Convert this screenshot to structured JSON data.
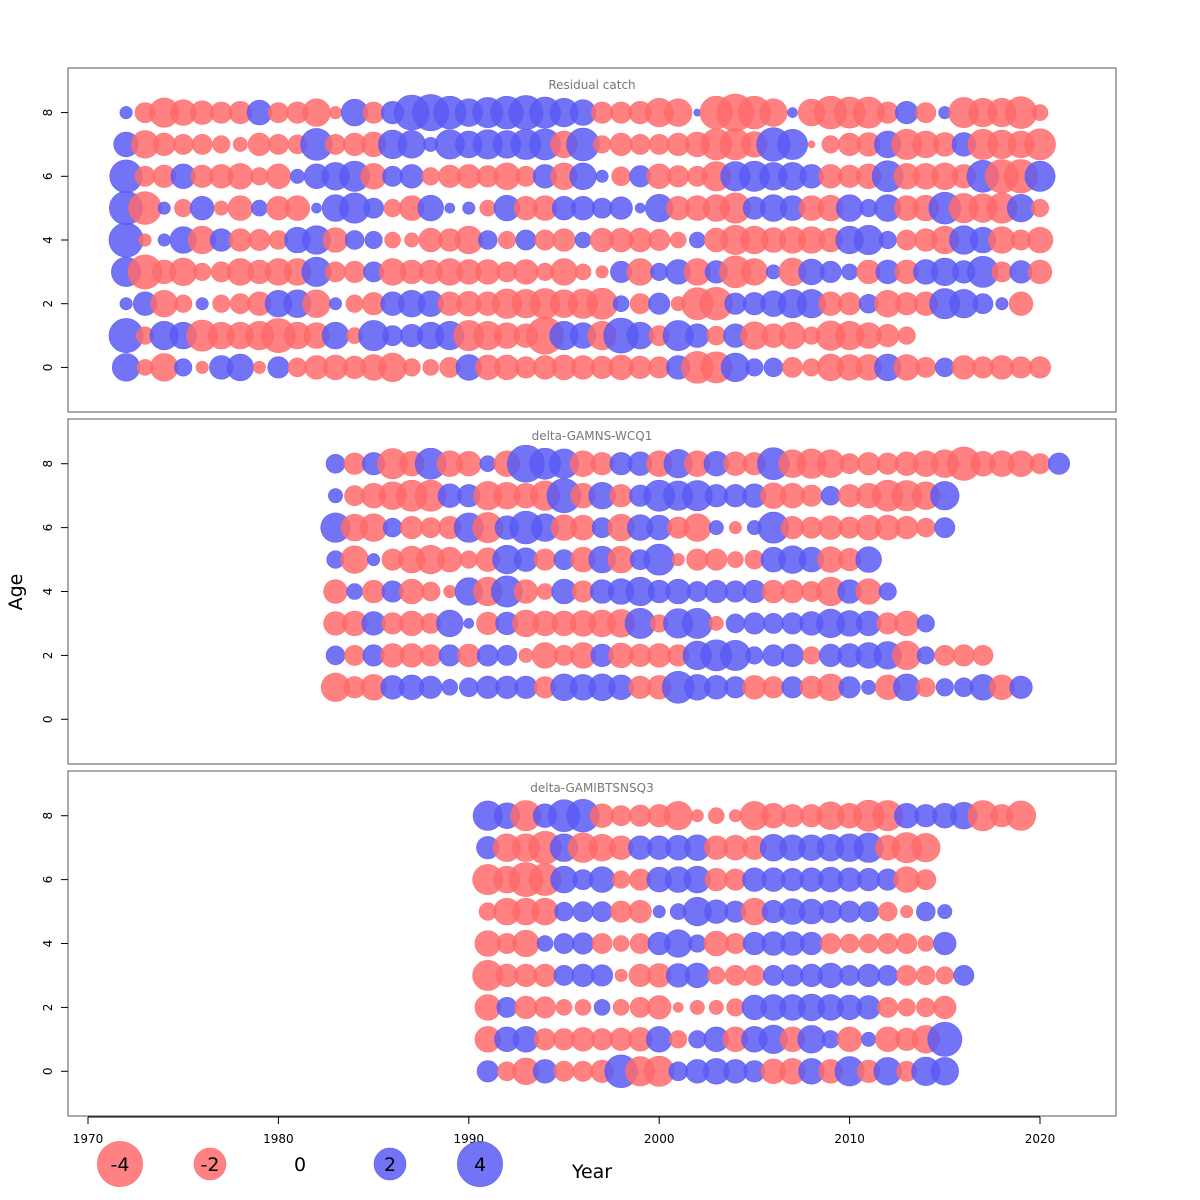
{
  "chart_data": {
    "type": "bubble",
    "xlabel": "Year",
    "ylabel": "Age",
    "x_ticks": [
      1970,
      1980,
      1990,
      2000,
      2010,
      2020
    ],
    "xlim": [
      1969,
      2024
    ],
    "colors": {
      "positive": "#5a5af5",
      "negative": "#ff6b6b"
    },
    "legend": {
      "items": [
        {
          "label": "-4",
          "value": -4
        },
        {
          "label": "-2",
          "value": -2
        },
        {
          "label": "0",
          "value": 0
        },
        {
          "label": "2",
          "value": 2
        },
        {
          "label": "4",
          "value": 4
        }
      ]
    },
    "panels": [
      {
        "title": "Residual catch",
        "y_ticks": [
          "0",
          "2",
          "4",
          "6",
          "8"
        ],
        "ylim": [
          -1.4,
          9.4
        ],
        "years": [
          1972,
          2020
        ],
        "ages": [
          0,
          8
        ],
        "residuals": {
          "8": [
            0.3,
            -0.8,
            -1.7,
            -1.3,
            -1.1,
            -0.9,
            -1.0,
            1.2,
            -0.8,
            -0.9,
            -1.5,
            -0.3,
            1.4,
            -0.9,
            1.0,
            2.4,
            2.6,
            2.1,
            1.5,
            1.8,
            2.1,
            2.3,
            1.9,
            1.6,
            1.3,
            -0.9,
            -0.9,
            -1.0,
            -1.6,
            -1.5,
            0.1,
            -2.1,
            -2.7,
            -2.1,
            -1.5,
            0.2,
            -1.4,
            -2.1,
            -1.9,
            -1.9,
            -0.9,
            1.0,
            -0.8,
            0.3,
            -1.8,
            -1.6,
            -1.6,
            -2.0,
            -0.5
          ],
          "7": [
            1.2,
            -1.5,
            -1.0,
            -0.8,
            -0.8,
            -0.6,
            -0.4,
            -1.0,
            -0.8,
            -0.7,
            2.0,
            -0.8,
            -1.0,
            -1.2,
            1.6,
            1.5,
            0.4,
            1.7,
            1.4,
            1.7,
            1.5,
            1.8,
            1.9,
            -1.4,
            2.1,
            -0.6,
            -1.0,
            -0.8,
            -0.8,
            -1.0,
            -1.2,
            -1.9,
            -1.9,
            -1.3,
            2.2,
            1.8,
            -0.1,
            -0.6,
            -1.0,
            -1.1,
            1.4,
            -1.8,
            -1.4,
            -1.1,
            1.1,
            -1.8,
            -1.6,
            -1.4,
            -1.9
          ],
          "6": [
            2.1,
            -0.8,
            -1.0,
            1.2,
            -1.0,
            -1.1,
            -1.3,
            -0.6,
            -1.2,
            0.4,
            1.2,
            1.5,
            1.8,
            -1.3,
            0.8,
            1.1,
            -0.6,
            -1.0,
            -1.1,
            -0.9,
            -1.4,
            -0.8,
            1.1,
            -1.4,
            1.4,
            0.3,
            -0.7,
            0.9,
            -1.2,
            -0.9,
            -0.8,
            -1.7,
            1.7,
            1.8,
            1.5,
            1.5,
            1.1,
            -1.1,
            -1.0,
            -1.2,
            1.9,
            -1.3,
            -1.3,
            -1.4,
            -1.1,
            2.0,
            -2.2,
            -2.2,
            1.8
          ],
          "5": [
            2.2,
            -2.1,
            0.3,
            -0.6,
            1.1,
            -0.4,
            -1.2,
            0.5,
            -1.1,
            -1.2,
            0.2,
            1.4,
            1.8,
            0.8,
            -0.6,
            -1.2,
            1.3,
            0.2,
            0.3,
            -0.5,
            1.3,
            -1.1,
            -1.2,
            1.1,
            1.1,
            0.8,
            1.0,
            0.2,
            1.5,
            -1.1,
            -1.2,
            -1.4,
            -1.8,
            1.0,
            1.4,
            1.2,
            -1.2,
            -1.3,
            1.4,
            0.6,
            1.4,
            -1.2,
            -1.3,
            2.0,
            -1.7,
            -1.6,
            -1.8,
            1.5,
            -0.6
          ],
          "4": [
            2.3,
            -0.3,
            0.3,
            1.4,
            -1.5,
            1.0,
            -1.0,
            -0.9,
            -0.7,
            1.3,
            1.6,
            -1.2,
            0.7,
            0.6,
            -0.5,
            -0.4,
            -1.1,
            -1.0,
            -1.5,
            0.7,
            -0.6,
            0.8,
            -0.8,
            -1.0,
            0.5,
            -1.1,
            -1.1,
            -1.1,
            -0.9,
            -0.5,
            0.5,
            -1.1,
            -1.7,
            -1.5,
            -1.2,
            -1.4,
            -1.4,
            -1.1,
            1.5,
            1.7,
            0.6,
            -0.8,
            -1.0,
            -1.5,
            1.6,
            1.3,
            -1.4,
            -0.8,
            -1.3,
            -1.2,
            -1.4,
            0.8
          ],
          "3": [
            1.7,
            -2.3,
            -1.1,
            -1.5,
            -0.6,
            -0.8,
            -1.4,
            -1.1,
            -1.4,
            -1.4,
            1.7,
            -0.8,
            -0.9,
            0.8,
            -1.4,
            -1.1,
            -1.1,
            -1.4,
            -1.2,
            -1.2,
            -0.8,
            -1.2,
            -0.6,
            -1.4,
            -0.5,
            -0.3,
            0.9,
            -1.4,
            0.6,
            1.2,
            -1.4,
            1.0,
            -2.0,
            -1.4,
            0.4,
            -1.5,
            1.3,
            0.9,
            0.5,
            -1.1,
            1.1,
            -1.1,
            1.2,
            1.5,
            1.0,
            1.9,
            -0.8,
            1.0,
            -1.1,
            0.8,
            -1.1,
            -1.1,
            0.7
          ],
          "2": [
            0.3,
            1.1,
            -1.4,
            -0.6,
            0.3,
            -0.6,
            -0.8,
            -1.1,
            1.4,
            1.5,
            -1.5,
            0.3,
            -0.6,
            -1.0,
            1.1,
            1.4,
            1.3,
            -1.1,
            -1.2,
            -1.1,
            -1.7,
            -1.6,
            -1.8,
            -1.5,
            -1.7,
            -1.9,
            0.5,
            -0.8,
            0.9,
            -0.4,
            -2.0,
            -2.1,
            0.9,
            1.0,
            1.3,
            1.6,
            1.6,
            -1.1,
            -1.0,
            0.7,
            -1.4,
            -1.0,
            -1.1,
            1.8,
            1.6,
            0.8,
            0.3,
            -1.1
          ],
          "1": [
            2.3,
            -0.6,
            1.6,
            1.4,
            -1.9,
            -1.4,
            -1.4,
            -1.6,
            -2.3,
            -1.4,
            -1.3,
            1.4,
            -0.5,
            1.8,
            0.8,
            1.0,
            1.4,
            1.6,
            -1.8,
            -1.6,
            -1.3,
            -1.1,
            -2.7,
            1.6,
            1.3,
            -1.6,
            2.4,
            1.4,
            -0.8,
            1.8,
            1.1,
            -0.7,
            1.1,
            -1.5,
            -1.1,
            -1.4,
            -0.6,
            -1.7,
            -1.6,
            -1.3,
            -1.0,
            -0.6
          ],
          "0": [
            1.5,
            -0.5,
            -1.5,
            0.6,
            -0.3,
            1.1,
            1.4,
            -0.3,
            0.9,
            -0.7,
            -1.1,
            -1.2,
            -1.0,
            -1.3,
            -1.6,
            -0.6,
            -0.5,
            -0.8,
            1.3,
            -1.2,
            -1.2,
            -0.9,
            -1.1,
            -1.2,
            -1.1,
            -1.0,
            -1.2,
            -1.0,
            -0.9,
            1.1,
            -2.0,
            -1.9,
            1.6,
            0.6,
            0.7,
            -0.8,
            -0.6,
            -1.4,
            -1.3,
            -1.3,
            1.4,
            -1.3,
            -0.8,
            0.7,
            -1.1,
            -0.9,
            -1.1,
            -0.9,
            -0.9,
            0.8,
            -1.3,
            -0.8,
            -1.6
          ]
        }
      },
      {
        "title": "delta-GAMNS-WCQ1",
        "y_ticks": [
          "0",
          "2",
          "4",
          "6",
          "8"
        ],
        "ylim": [
          -1.4,
          9.4
        ],
        "years": [
          1983,
          2021
        ],
        "ages": [
          1,
          8
        ],
        "residuals": {
          "8": [
            0.7,
            -0.9,
            1.0,
            -1.8,
            -1.2,
            1.9,
            -1.3,
            -1.2,
            0.5,
            -1.3,
            2.7,
            1.9,
            1.7,
            -1.3,
            -1.0,
            1.0,
            1.1,
            -1.3,
            1.6,
            -1.3,
            1.2,
            -1.1,
            -1.0,
            2.0,
            -1.5,
            -1.7,
            -1.5,
            -0.8,
            -1.0,
            -0.9,
            -1.1,
            -1.3,
            -1.5,
            -2.2,
            -1.2,
            -1.3,
            -1.3,
            -0.8,
            0.9
          ],
          "7": [
            0.4,
            -0.8,
            -1.2,
            -1.5,
            -1.9,
            -1.9,
            1.1,
            1.0,
            -1.6,
            -1.4,
            -1.2,
            -1.7,
            2.3,
            -1.2,
            1.4,
            -1.0,
            0.9,
            1.9,
            1.7,
            1.8,
            1.0,
            1.0,
            1.1,
            -1.3,
            -1.2,
            -0.9,
            0.7,
            -1.0,
            -1.2,
            -1.9,
            -1.8,
            -1.5,
            1.6
          ],
          "6": [
            1.7,
            -1.4,
            -1.5,
            0.7,
            -1.0,
            -0.8,
            -1.0,
            1.7,
            -1.8,
            1.1,
            2.1,
            1.5,
            -1.3,
            -1.2,
            0.8,
            -1.4,
            1.3,
            1.2,
            -0.9,
            -1.5,
            0.4,
            -0.3,
            0.4,
            1.9,
            -1.0,
            -0.9,
            -1.1,
            -0.9,
            -1.2,
            -1.2,
            -1.0,
            -0.7,
            0.8
          ],
          "5": [
            0.6,
            -1.5,
            0.3,
            -0.9,
            -1.4,
            -1.6,
            -1.2,
            -0.6,
            -1.1,
            1.6,
            1.1,
            -0.9,
            0.8,
            -1.2,
            1.4,
            -1.4,
            0.8,
            1.9,
            -0.3,
            -0.9,
            -0.9,
            -0.5,
            -0.7,
            1.2,
            1.5,
            1.2,
            -1.3,
            -1.0,
            1.3
          ],
          "4": [
            -1.1,
            0.5,
            -1.0,
            0.9,
            -1.2,
            -0.7,
            -0.3,
            1.5,
            -1.6,
            1.9,
            -1.1,
            -0.5,
            1.2,
            -0.9,
            1.1,
            1.3,
            1.6,
            1.0,
            1.2,
            0.8,
            1.0,
            0.9,
            1.0,
            -1.0,
            -1.0,
            -0.8,
            -1.6,
            1.1,
            -1.3,
            0.6
          ],
          "3": [
            -1.1,
            -1.2,
            1.1,
            -0.9,
            -1.2,
            -0.8,
            1.4,
            0.2,
            -1.0,
            1.0,
            -1.4,
            -1.2,
            -1.2,
            -1.3,
            -1.4,
            -1.5,
            1.8,
            -0.6,
            1.7,
            1.8,
            -0.4,
            0.7,
            0.9,
            0.8,
            0.9,
            1.1,
            1.6,
            1.3,
            1.2,
            -0.9,
            -1.2,
            0.6
          ],
          "2": [
            0.7,
            -0.8,
            0.9,
            -1.1,
            -1.1,
            -0.9,
            0.9,
            -1.0,
            0.9,
            0.8,
            -0.4,
            -1.3,
            -0.8,
            -1.3,
            1.0,
            -1.2,
            -1.0,
            -1.1,
            -0.9,
            1.6,
            1.9,
            1.8,
            0.6,
            0.9,
            1.0,
            -0.6,
            1.0,
            1.1,
            1.3,
            1.5,
            -1.6,
            0.6,
            -0.8,
            -0.9,
            -0.8
          ],
          "1": [
            -1.6,
            -0.9,
            -1.3,
            1.1,
            1.2,
            1.0,
            0.5,
            0.7,
            1.0,
            1.0,
            1.0,
            -0.9,
            1.4,
            1.3,
            1.4,
            1.2,
            -1.0,
            -1.1,
            2.0,
            1.3,
            1.1,
            0.9,
            -1.1,
            -0.9,
            0.9,
            -1.0,
            -1.4,
            0.9,
            0.4,
            -1.2,
            1.4,
            -0.7,
            0.6,
            0.7,
            1.3,
            -1.2,
            1.0
          ]
        }
      },
      {
        "title": "delta-GAMIBTSNSQ3",
        "y_ticks": [
          "0",
          "2",
          "4",
          "6",
          "8"
        ],
        "ylim": [
          -1.4,
          9.4
        ],
        "years": [
          1991,
          2020
        ],
        "ages": [
          0,
          8
        ],
        "residuals": {
          "8": [
            1.7,
            1.3,
            -1.8,
            1.1,
            2.0,
            2.1,
            -1.1,
            -0.8,
            -0.9,
            -1.0,
            -1.6,
            -0.3,
            -0.5,
            -0.3,
            -1.6,
            -1.2,
            -1.0,
            -1.0,
            -1.5,
            -1.2,
            -1.9,
            -1.8,
            1.2,
            1.0,
            1.2,
            1.4,
            -1.8,
            -1.0,
            -1.7
          ],
          "7": [
            1.0,
            -1.5,
            -1.5,
            -2.1,
            1.5,
            -1.7,
            -1.4,
            -1.1,
            1.1,
            1.1,
            1.2,
            1.3,
            -1.1,
            -1.2,
            -1.1,
            1.4,
            1.3,
            1.3,
            1.4,
            1.5,
            1.7,
            -1.2,
            -1.8,
            -1.6
          ],
          "6": [
            -1.8,
            -1.4,
            -2.3,
            -2.0,
            1.4,
            0.8,
            1.3,
            -0.6,
            -0.9,
            1.2,
            1.3,
            1.4,
            -1.0,
            -0.9,
            1.1,
            1.1,
            1.0,
            1.1,
            1.2,
            1.1,
            1.0,
            0.9,
            -1.3,
            -0.8
          ],
          "5": [
            -0.6,
            -1.4,
            -1.4,
            -1.4,
            0.7,
            0.8,
            0.8,
            -0.9,
            -1.0,
            0.3,
            0.5,
            1.6,
            1.1,
            0.9,
            -1.4,
            1.0,
            1.3,
            1.2,
            1.0,
            0.9,
            0.8,
            -0.7,
            -0.3,
            0.7,
            0.4
          ],
          "4": [
            -1.3,
            -0.8,
            -1.4,
            0.5,
            0.8,
            0.9,
            -0.8,
            -0.5,
            -0.8,
            1.0,
            1.5,
            0.6,
            -1.2,
            -0.8,
            1.0,
            1.1,
            1.1,
            1.0,
            -0.8,
            -0.7,
            -0.7,
            -0.8,
            -0.8,
            -0.5,
            1.0
          ],
          "3": [
            -1.8,
            -1.0,
            -1.0,
            -1.0,
            0.8,
            1.0,
            0.9,
            -0.3,
            -1.0,
            -1.1,
            1.1,
            1.2,
            -0.6,
            -0.8,
            -0.8,
            0.8,
            0.9,
            1.0,
            1.2,
            0.8,
            1.0,
            0.8,
            -0.8,
            -0.7,
            -0.6,
            0.8
          ],
          "2": [
            -1.3,
            0.8,
            -1.0,
            -0.9,
            -0.5,
            -0.5,
            0.5,
            -0.5,
            -0.8,
            -1.1,
            -0.2,
            -0.4,
            -0.4,
            -0.6,
            1.2,
            1.3,
            1.3,
            1.4,
            1.3,
            1.2,
            1.1,
            -0.8,
            -0.6,
            -0.7,
            -1.0
          ],
          "1": [
            -1.3,
            1.2,
            1.3,
            -0.9,
            -0.9,
            -1.1,
            -0.9,
            -1.0,
            -1.1,
            1.3,
            -0.6,
            0.6,
            1.2,
            -1.2,
            1.3,
            1.6,
            -1.2,
            1.5,
            0.6,
            -1.2,
            0.4,
            -1.2,
            -1.0,
            -1.5,
            2.3
          ],
          "0": [
            0.9,
            -0.7,
            -1.4,
            1.1,
            -0.8,
            -0.8,
            -1.0,
            2.1,
            -1.7,
            -1.8,
            0.7,
            1.1,
            1.3,
            1.1,
            0.9,
            -1.2,
            -1.3,
            1.3,
            -1.1,
            1.7,
            -1.0,
            1.5,
            -0.8,
            1.6,
            1.5
          ]
        }
      }
    ]
  }
}
